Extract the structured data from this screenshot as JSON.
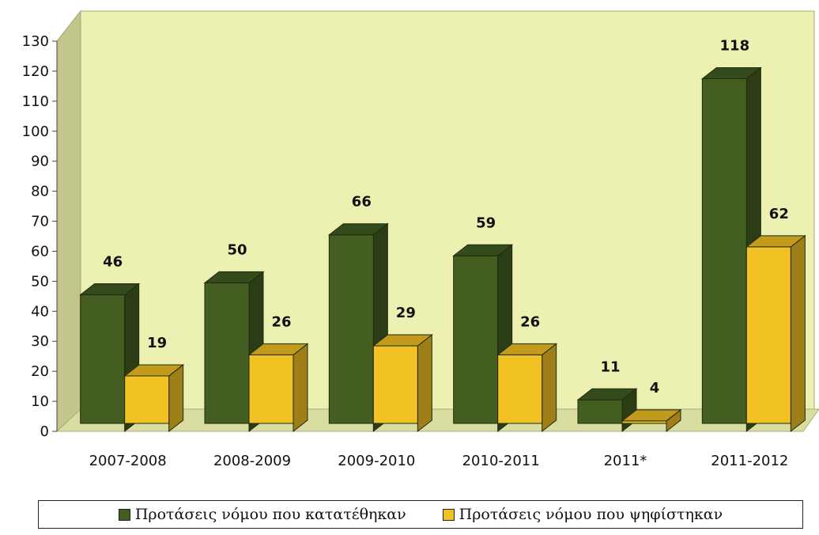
{
  "chart_data": {
    "type": "bar",
    "categories": [
      "2007-2008",
      "2008-2009",
      "2009-2010",
      "2010-2011",
      "2011*",
      "2011-2012"
    ],
    "series": [
      {
        "name": "Προτάσεις νόμου που κατατέθηκαν",
        "values": [
          46,
          50,
          66,
          59,
          11,
          118
        ],
        "color": "#445e22"
      },
      {
        "name": "Προτάσεις νόμου που ψηφίστηκαν",
        "values": [
          19,
          26,
          29,
          26,
          4,
          62
        ],
        "color": "#f2c224"
      }
    ],
    "ylim": [
      0,
      130
    ],
    "yticks": [
      "0",
      "10",
      "20",
      "30",
      "40",
      "50",
      "60",
      "70",
      "80",
      "90",
      "100",
      "110",
      "120",
      "130"
    ],
    "plot_background": "#ecf0b0",
    "title": "",
    "xlabel": "",
    "ylabel": "",
    "legend_position": "bottom"
  }
}
